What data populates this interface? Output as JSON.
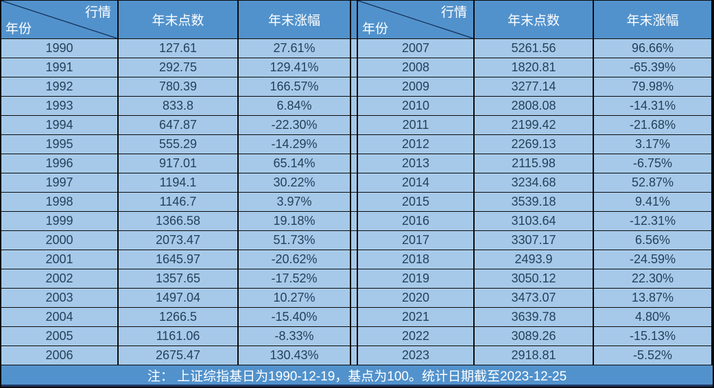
{
  "chart_data": {
    "type": "table",
    "title": "",
    "corner_label_top": "行情",
    "corner_label_bottom": "年份",
    "column_headers": [
      "年末点数",
      "年末涨幅"
    ],
    "columns_meaning": [
      "年份",
      "年末点数",
      "年末涨幅"
    ],
    "panels": [
      {
        "rows": [
          [
            "1990",
            "127.61",
            "27.61%"
          ],
          [
            "1991",
            "292.75",
            "129.41%"
          ],
          [
            "1992",
            "780.39",
            "166.57%"
          ],
          [
            "1993",
            "833.8",
            "6.84%"
          ],
          [
            "1994",
            "647.87",
            "-22.30%"
          ],
          [
            "1995",
            "555.29",
            "-14.29%"
          ],
          [
            "1996",
            "917.01",
            "65.14%"
          ],
          [
            "1997",
            "1194.1",
            "30.22%"
          ],
          [
            "1998",
            "1146.7",
            "3.97%"
          ],
          [
            "1999",
            "1366.58",
            "19.18%"
          ],
          [
            "2000",
            "2073.47",
            "51.73%"
          ],
          [
            "2001",
            "1645.97",
            "-20.62%"
          ],
          [
            "2002",
            "1357.65",
            "-17.52%"
          ],
          [
            "2003",
            "1497.04",
            "10.27%"
          ],
          [
            "2004",
            "1266.5",
            "-15.40%"
          ],
          [
            "2005",
            "1161.06",
            "-8.33%"
          ],
          [
            "2006",
            "2675.47",
            "130.43%"
          ]
        ]
      },
      {
        "rows": [
          [
            "2007",
            "5261.56",
            "96.66%"
          ],
          [
            "2008",
            "1820.81",
            "-65.39%"
          ],
          [
            "2009",
            "3277.14",
            "79.98%"
          ],
          [
            "2010",
            "2808.08",
            "-14.31%"
          ],
          [
            "2011",
            "2199.42",
            "-21.68%"
          ],
          [
            "2012",
            "2269.13",
            "3.17%"
          ],
          [
            "2013",
            "2115.98",
            "-6.75%"
          ],
          [
            "2014",
            "3234.68",
            "52.87%"
          ],
          [
            "2015",
            "3539.18",
            "9.41%"
          ],
          [
            "2016",
            "3103.64",
            "-12.31%"
          ],
          [
            "2017",
            "3307.17",
            "6.56%"
          ],
          [
            "2018",
            "2493.9",
            "-24.59%"
          ],
          [
            "2019",
            "3050.12",
            "22.30%"
          ],
          [
            "2020",
            "3473.07",
            "13.87%"
          ],
          [
            "2021",
            "3639.78",
            "4.80%"
          ],
          [
            "2022",
            "3089.26",
            "-15.13%"
          ],
          [
            "2023",
            "2918.81",
            "-5.52%"
          ]
        ]
      }
    ],
    "footer_note": "注： 上证综指基日为1990-12-19，基点为100。统计日期截至2023-12-25"
  },
  "colors": {
    "header_bg": "#5292CC",
    "row_bg": "#A6C9E9",
    "footer_bg": "#5292CC",
    "border": "#0b0b0b",
    "diagonal_line": "#17375E",
    "header_text": "#FFFFFF",
    "cell_text": "#24415B"
  }
}
